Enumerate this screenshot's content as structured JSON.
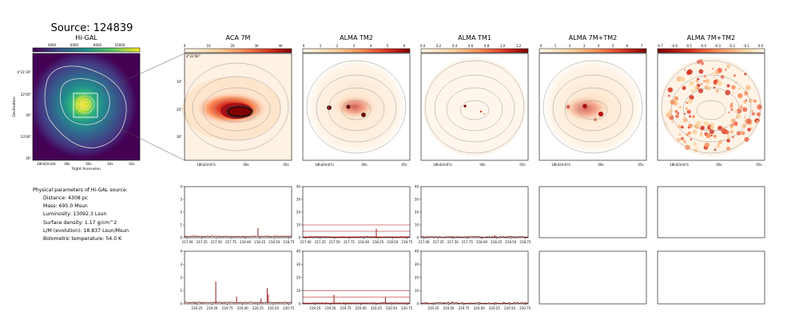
{
  "title": "Source: 124839",
  "panels": {
    "higal": {
      "title": "Hi-GAL",
      "ylabel": "Declination",
      "xlabel": "Right Ascension",
      "xticks": [
        "18h42m10s",
        "08s",
        "06s",
        "04s",
        "02s"
      ],
      "yticks": [
        "4°21'30\"",
        "22'00\"",
        "30\"",
        "23'00\"",
        "30\""
      ],
      "cbar_ticks": [
        "4000",
        "6000",
        "8000",
        "10000"
      ]
    },
    "aca": {
      "title": "ACA 7M",
      "cbar_ticks": [
        "0",
        "10",
        "20",
        "30",
        "40"
      ],
      "yticks": [
        "4°22'00\"",
        "10\"",
        "20\"",
        "30\""
      ]
    },
    "tm2": {
      "title": "ALMA TM2",
      "cbar_ticks": [
        "0",
        "1",
        "2",
        "3",
        "4",
        "5",
        "6"
      ]
    },
    "tm1": {
      "title": "ALMA TM1",
      "cbar_ticks": [
        "0.0",
        "0.2",
        "0.4",
        "0.6",
        "0.8",
        "1.0",
        "1.2"
      ]
    },
    "tm7m": {
      "title": "ALMA 7M+TM2",
      "cbar_ticks": [
        "0",
        "1",
        "2",
        "3",
        "4",
        "5",
        "6",
        "7"
      ]
    },
    "diff": {
      "title": "ALMA 7M+TM2",
      "cbar_ticks": [
        "-0.7",
        "-0.6",
        "-0.5",
        "-0.4",
        "-0.3",
        "-0.2",
        "-0.1",
        "0.0"
      ]
    },
    "map_xticks": [
      "18h42m07s",
      "06s",
      "05s"
    ]
  },
  "physical": {
    "heading": "Physical parameters of Hi-GAL source:",
    "lines": [
      "Distance: 4308 pc",
      "Mass: 695.0 Msun",
      "Luminosity: 13092.3 Lsun",
      "Surface density: 1.17 g/cm^2",
      "L/M (evolution): 18.837 Lsun/Msun",
      "Bolometric temperature: 54.0 K"
    ]
  },
  "chart_data": [
    {
      "type": "line",
      "panel": "spectrum-aca-top",
      "xlim": [
        216.95,
        218.8
      ],
      "ylim": [
        0,
        4
      ],
      "xticks": [
        "217.00",
        "217.25",
        "217.50",
        "217.75",
        "218.00",
        "218.25",
        "218.50",
        "218.75"
      ],
      "yticks": [
        "0",
        "1",
        "2",
        "3",
        "4"
      ],
      "baseline": 0.1,
      "lines": [
        {
          "x": 218.22,
          "y": 0.75
        }
      ],
      "hlines": []
    },
    {
      "type": "line",
      "panel": "spectrum-tm2-top",
      "xlim": [
        216.95,
        218.8
      ],
      "ylim": [
        0,
        40
      ],
      "xticks": [
        "217.00",
        "217.25",
        "217.50",
        "217.75",
        "218.00",
        "218.25",
        "218.50",
        "218.75"
      ],
      "yticks": [
        "0",
        "10",
        "20",
        "30",
        "40"
      ],
      "baseline": 0.5,
      "lines": [
        {
          "x": 218.22,
          "y": 7
        }
      ],
      "hlines": [
        0.6,
        5,
        10
      ]
    },
    {
      "type": "line",
      "panel": "spectrum-tm1-top",
      "xlim": [
        216.95,
        218.8
      ],
      "ylim": [
        0,
        40
      ],
      "xticks": [
        "217.00",
        "217.25",
        "217.50",
        "217.75",
        "218.00",
        "218.25",
        "218.50",
        "218.75"
      ],
      "yticks": [
        "0",
        "10",
        "20",
        "30",
        "40"
      ],
      "baseline": 0.6,
      "lines": [
        {
          "x": 218.22,
          "y": 2
        }
      ],
      "hlines": []
    },
    {
      "type": "line",
      "panel": "spectrum-aca-bottom",
      "xlim": [
        219.05,
        220.8
      ],
      "ylim": [
        0,
        4
      ],
      "xticks": [
        "219.25",
        "219.50",
        "219.75",
        "220.00",
        "220.25",
        "220.50",
        "220.75"
      ],
      "yticks": [
        "0",
        "1",
        "2",
        "3",
        "4"
      ],
      "baseline": 0.1,
      "lines": [
        {
          "x": 219.56,
          "y": 1.7
        },
        {
          "x": 219.9,
          "y": 0.55
        },
        {
          "x": 220.3,
          "y": 0.4
        },
        {
          "x": 220.4,
          "y": 1.2
        },
        {
          "x": 220.42,
          "y": 0.7
        }
      ],
      "hlines": []
    },
    {
      "type": "line",
      "panel": "spectrum-tm2-bottom",
      "xlim": [
        219.05,
        220.8
      ],
      "ylim": [
        0,
        40
      ],
      "xticks": [
        "219.25",
        "219.50",
        "219.75",
        "220.00",
        "220.25",
        "220.50",
        "220.75"
      ],
      "yticks": [
        "0",
        "10",
        "20",
        "30",
        "40"
      ],
      "baseline": 0.5,
      "lines": [
        {
          "x": 219.56,
          "y": 7
        },
        {
          "x": 220.4,
          "y": 5
        }
      ],
      "hlines": [
        0.6,
        5,
        10
      ]
    },
    {
      "type": "line",
      "panel": "spectrum-tm1-bottom",
      "xlim": [
        219.05,
        220.8
      ],
      "ylim": [
        0,
        40
      ],
      "xticks": [
        "219.25",
        "219.50",
        "219.75",
        "220.00",
        "220.25",
        "220.50",
        "220.75"
      ],
      "yticks": [
        "0",
        "10",
        "20",
        "30",
        "40"
      ],
      "baseline": 0.6,
      "lines": [
        {
          "x": 219.56,
          "y": 2
        },
        {
          "x": 220.4,
          "y": 1.5
        }
      ],
      "hlines": []
    }
  ]
}
